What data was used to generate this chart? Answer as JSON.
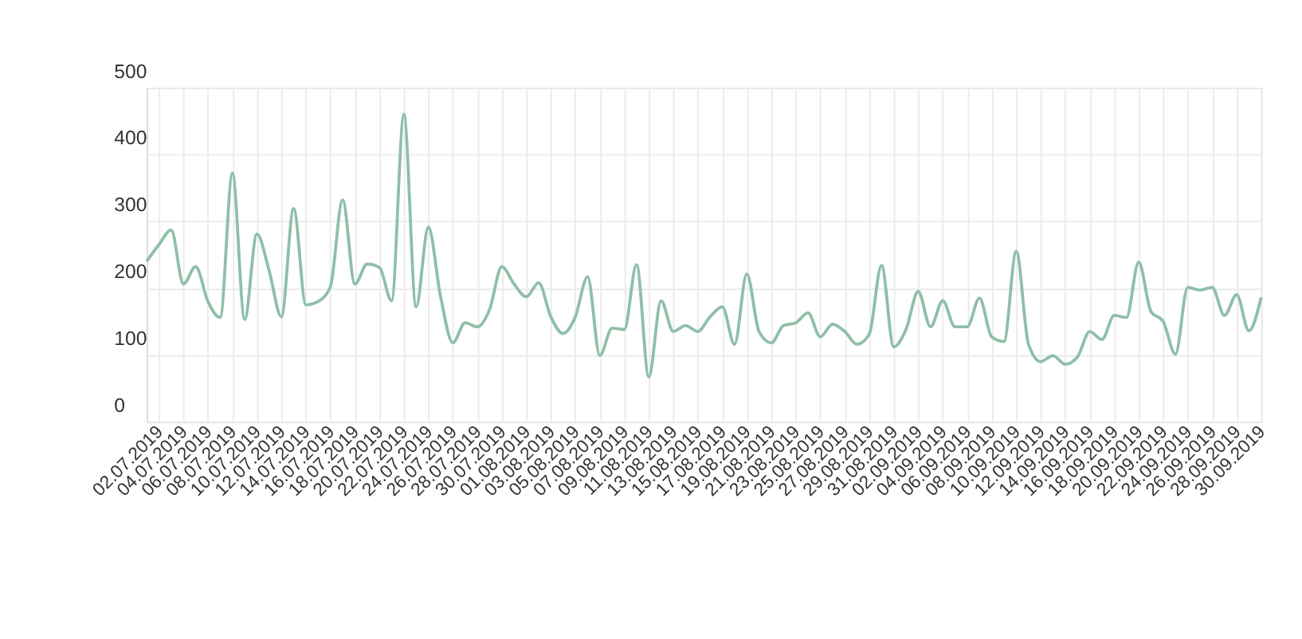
{
  "chart_data": {
    "type": "line",
    "x": [
      "2019-07-01",
      "2019-07-02",
      "2019-07-03",
      "2019-07-04",
      "2019-07-05",
      "2019-07-06",
      "2019-07-07",
      "2019-07-08",
      "2019-07-09",
      "2019-07-10",
      "2019-07-11",
      "2019-07-12",
      "2019-07-13",
      "2019-07-14",
      "2019-07-15",
      "2019-07-16",
      "2019-07-17",
      "2019-07-18",
      "2019-07-19",
      "2019-07-20",
      "2019-07-21",
      "2019-07-22",
      "2019-07-23",
      "2019-07-24",
      "2019-07-25",
      "2019-07-26",
      "2019-07-27",
      "2019-07-28",
      "2019-07-29",
      "2019-07-30",
      "2019-07-31",
      "2019-08-01",
      "2019-08-02",
      "2019-08-03",
      "2019-08-04",
      "2019-08-05",
      "2019-08-06",
      "2019-08-07",
      "2019-08-08",
      "2019-08-09",
      "2019-08-10",
      "2019-08-11",
      "2019-08-12",
      "2019-08-13",
      "2019-08-14",
      "2019-08-15",
      "2019-08-16",
      "2019-08-17",
      "2019-08-18",
      "2019-08-19",
      "2019-08-20",
      "2019-08-21",
      "2019-08-22",
      "2019-08-23",
      "2019-08-24",
      "2019-08-25",
      "2019-08-26",
      "2019-08-27",
      "2019-08-28",
      "2019-08-29",
      "2019-08-30",
      "2019-08-31",
      "2019-09-01",
      "2019-09-02",
      "2019-09-03",
      "2019-09-04",
      "2019-09-05",
      "2019-09-06",
      "2019-09-07",
      "2019-09-08",
      "2019-09-09",
      "2019-09-10",
      "2019-09-11",
      "2019-09-12",
      "2019-09-13",
      "2019-09-14",
      "2019-09-15",
      "2019-09-16",
      "2019-09-17",
      "2019-09-18",
      "2019-09-19",
      "2019-09-20",
      "2019-09-21",
      "2019-09-22",
      "2019-09-23",
      "2019-09-24",
      "2019-09-25",
      "2019-09-26",
      "2019-09-27",
      "2019-09-28",
      "2019-09-29",
      "2019-09-30"
    ],
    "series": [
      {
        "color": "#8fbfa8",
        "values": [
          240,
          265,
          287,
          206,
          232,
          180,
          156,
          372,
          153,
          281,
          226,
          157,
          319,
          175,
          180,
          202,
          332,
          206,
          236,
          231,
          181,
          460,
          172,
          291,
          187,
          118,
          148,
          142,
          168,
          232,
          206,
          187,
          208,
          157,
          132,
          157,
          217,
          99,
          140,
          138,
          235,
          67,
          181,
          135,
          144,
          135,
          157,
          172,
          116,
          221,
          135,
          118,
          144,
          148,
          163,
          127,
          146,
          135,
          116,
          131,
          234,
          112,
          138,
          195,
          142,
          181,
          142,
          142,
          185,
          127,
          120,
          255,
          116,
          90,
          99,
          86,
          97,
          135,
          123,
          159,
          156,
          239,
          165,
          150,
          101,
          201,
          197,
          201,
          159,
          190,
          136,
          186
        ]
      }
    ],
    "xlim": [
      "2019-07-01",
      "2019-09-30"
    ],
    "xticks": [
      {
        "value": "2019-07-02",
        "label": "02.07.2019"
      },
      {
        "value": "2019-07-04",
        "label": "04.07.2019"
      },
      {
        "value": "2019-07-06",
        "label": "06.07.2019"
      },
      {
        "value": "2019-07-08",
        "label": "08.07.2019"
      },
      {
        "value": "2019-07-10",
        "label": "10.07.2019"
      },
      {
        "value": "2019-07-12",
        "label": "12.07.2019"
      },
      {
        "value": "2019-07-14",
        "label": "14.07.2019"
      },
      {
        "value": "2019-07-16",
        "label": "16.07.2019"
      },
      {
        "value": "2019-07-18",
        "label": "18.07.2019"
      },
      {
        "value": "2019-07-20",
        "label": "20.07.2019"
      },
      {
        "value": "2019-07-22",
        "label": "22.07.2019"
      },
      {
        "value": "2019-07-24",
        "label": "24.07.2019"
      },
      {
        "value": "2019-07-26",
        "label": "26.07.2019"
      },
      {
        "value": "2019-07-28",
        "label": "28.07.2019"
      },
      {
        "value": "2019-07-30",
        "label": "30.07.2019"
      },
      {
        "value": "2019-08-01",
        "label": "01.08.2019"
      },
      {
        "value": "2019-08-03",
        "label": "03.08.2019"
      },
      {
        "value": "2019-08-05",
        "label": "05.08.2019"
      },
      {
        "value": "2019-08-07",
        "label": "07.08.2019"
      },
      {
        "value": "2019-08-09",
        "label": "09.08.2019"
      },
      {
        "value": "2019-08-11",
        "label": "11.08.2019"
      },
      {
        "value": "2019-08-13",
        "label": "13.08.2019"
      },
      {
        "value": "2019-08-15",
        "label": "15.08.2019"
      },
      {
        "value": "2019-08-17",
        "label": "17.08.2019"
      },
      {
        "value": "2019-08-19",
        "label": "19.08.2019"
      },
      {
        "value": "2019-08-21",
        "label": "21.08.2019"
      },
      {
        "value": "2019-08-23",
        "label": "23.08.2019"
      },
      {
        "value": "2019-08-25",
        "label": "25.08.2019"
      },
      {
        "value": "2019-08-27",
        "label": "27.08.2019"
      },
      {
        "value": "2019-08-29",
        "label": "29.08.2019"
      },
      {
        "value": "2019-08-31",
        "label": "31.08.2019"
      },
      {
        "value": "2019-09-02",
        "label": "02.09.2019"
      },
      {
        "value": "2019-09-04",
        "label": "04.09.2019"
      },
      {
        "value": "2019-09-06",
        "label": "06.09.2019"
      },
      {
        "value": "2019-09-08",
        "label": "08.09.2019"
      },
      {
        "value": "2019-09-10",
        "label": "10.09.2019"
      },
      {
        "value": "2019-09-12",
        "label": "12.09.2019"
      },
      {
        "value": "2019-09-14",
        "label": "14.09.2019"
      },
      {
        "value": "2019-09-16",
        "label": "16.09.2019"
      },
      {
        "value": "2019-09-18",
        "label": "18.09.2019"
      },
      {
        "value": "2019-09-20",
        "label": "20.09.2019"
      },
      {
        "value": "2019-09-22",
        "label": "22.09.2019"
      },
      {
        "value": "2019-09-24",
        "label": "24.09.2019"
      },
      {
        "value": "2019-09-26",
        "label": "26.09.2019"
      },
      {
        "value": "2019-09-28",
        "label": "28.09.2019"
      },
      {
        "value": "2019-09-30",
        "label": "30.09.2019"
      }
    ],
    "ylim": [
      0,
      500
    ],
    "yticks": [
      0,
      100,
      200,
      300,
      400,
      500
    ],
    "grid": true,
    "marker": "none",
    "line_style": "solid"
  }
}
